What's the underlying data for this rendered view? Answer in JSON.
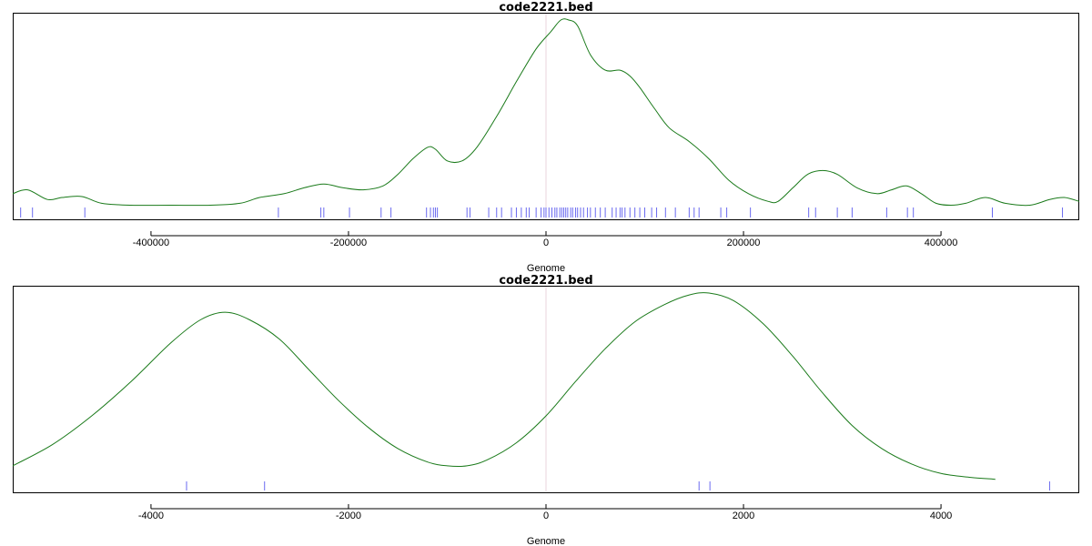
{
  "colors": {
    "density": "#1a7a1a",
    "rug": "#6a6af0",
    "zero_line": "#e8d6dc"
  },
  "chart_data": [
    {
      "type": "line",
      "title": "code2221.bed",
      "xlabel": "Genome",
      "ylabel": "",
      "xlim": [
        -540000,
        540000
      ],
      "ylim": [
        0,
        1
      ],
      "xticks": [
        -400000,
        -200000,
        0,
        200000,
        400000
      ],
      "xtick_labels": [
        "-400000",
        "-200000",
        "0",
        "200000",
        "400000"
      ],
      "grid": false,
      "series": [
        {
          "x": [
            -540000,
            -525000,
            -505000,
            -490000,
            -470000,
            -450000,
            -420000,
            -380000,
            -340000,
            -310000,
            -290000,
            -265000,
            -245000,
            -225000,
            -205000,
            -185000,
            -165000,
            -150000,
            -135000,
            -120000,
            -112000,
            -100000,
            -85000,
            -70000,
            -50000,
            -30000,
            -10000,
            5000,
            15000,
            23000,
            32000,
            45000,
            60000,
            75000,
            85000,
            95000,
            110000,
            125000,
            145000,
            165000,
            185000,
            205000,
            225000,
            235000,
            250000,
            265000,
            280000,
            295000,
            315000,
            335000,
            350000,
            365000,
            380000,
            395000,
            410000,
            425000,
            445000,
            465000,
            490000,
            510000,
            525000,
            540000
          ],
          "y": [
            0.1,
            0.12,
            0.07,
            0.08,
            0.085,
            0.05,
            0.04,
            0.04,
            0.04,
            0.05,
            0.08,
            0.1,
            0.13,
            0.15,
            0.13,
            0.12,
            0.14,
            0.2,
            0.28,
            0.34,
            0.33,
            0.27,
            0.27,
            0.34,
            0.5,
            0.68,
            0.85,
            0.94,
            1.0,
            1.0,
            0.97,
            0.82,
            0.74,
            0.74,
            0.71,
            0.65,
            0.54,
            0.44,
            0.37,
            0.28,
            0.17,
            0.1,
            0.06,
            0.06,
            0.13,
            0.2,
            0.22,
            0.2,
            0.13,
            0.1,
            0.12,
            0.14,
            0.1,
            0.05,
            0.04,
            0.05,
            0.08,
            0.05,
            0.04,
            0.07,
            0.08,
            0.06
          ]
        }
      ],
      "rug": [
        -532000,
        -520000,
        -467000,
        -271000,
        -228000,
        -225000,
        -199000,
        -167000,
        -157000,
        -121000,
        -117000,
        -114000,
        -112000,
        -110000,
        -80000,
        -77000,
        -58000,
        -50000,
        -45000,
        -35000,
        -30000,
        -25000,
        -20000,
        -17000,
        -10000,
        -5000,
        -2000,
        0,
        3000,
        6000,
        9000,
        11000,
        14000,
        16000,
        18000,
        20000,
        22000,
        25000,
        27000,
        30000,
        32000,
        35000,
        38000,
        42000,
        45000,
        50000,
        55000,
        60000,
        67000,
        71000,
        75000,
        77000,
        80000,
        85000,
        90000,
        95000,
        100000,
        107000,
        112000,
        121000,
        131000,
        145000,
        150000,
        155000,
        177000,
        183000,
        207000,
        266000,
        273000,
        295000,
        310000,
        345000,
        366000,
        372000,
        452000,
        523000
      ]
    },
    {
      "type": "line",
      "title": "code2221.bed",
      "xlabel": "Genome",
      "ylabel": "",
      "xlim": [
        -5400,
        5400
      ],
      "ylim": [
        0,
        1
      ],
      "xticks": [
        -4000,
        -2000,
        0,
        2000,
        4000
      ],
      "xtick_labels": [
        "-4000",
        "-2000",
        "0",
        "2000",
        "4000"
      ],
      "grid": false,
      "series": [
        {
          "x": [
            -5400,
            -5000,
            -4600,
            -4200,
            -3800,
            -3500,
            -3250,
            -3000,
            -2700,
            -2400,
            -2100,
            -1800,
            -1500,
            -1200,
            -1000,
            -800,
            -600,
            -300,
            0,
            300,
            600,
            900,
            1200,
            1450,
            1650,
            1900,
            2200,
            2500,
            2800,
            3100,
            3400,
            3700,
            4000,
            4300,
            4550
          ],
          "y": [
            0.1,
            0.21,
            0.36,
            0.54,
            0.74,
            0.86,
            0.9,
            0.86,
            0.76,
            0.6,
            0.44,
            0.3,
            0.19,
            0.12,
            0.1,
            0.1,
            0.13,
            0.22,
            0.36,
            0.54,
            0.71,
            0.85,
            0.94,
            0.99,
            1.0,
            0.96,
            0.84,
            0.67,
            0.48,
            0.31,
            0.19,
            0.11,
            0.06,
            0.04,
            0.03
          ]
        }
      ],
      "rug": [
        -3640,
        -2850,
        1550,
        1660,
        5100
      ]
    }
  ]
}
